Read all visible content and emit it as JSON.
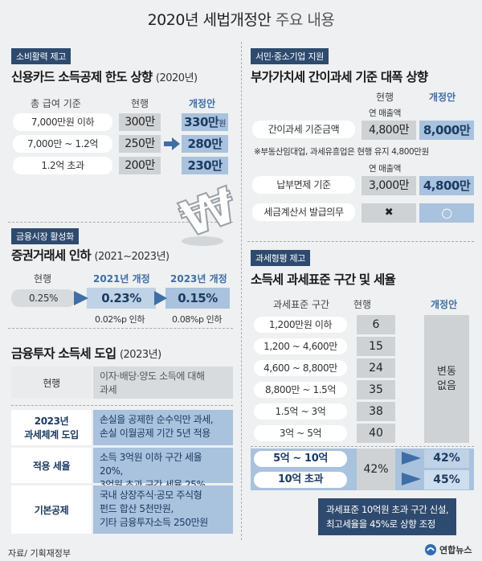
{
  "title_bold": "2020년 세법개정안",
  "title_light": "주요 내용",
  "card": {
    "tag": "소비활력 제고",
    "heading": "신용카드 소득공제 한도 상향",
    "heading_sub": "(2020년)",
    "col_salary": "총 급여 기준",
    "col_current": "현행",
    "col_new": "개정안",
    "rows": [
      {
        "salary": "7,000만원 이하",
        "current": "300만",
        "new": "330만",
        "unit": "원"
      },
      {
        "salary": "7,000만 ~ 1.2억",
        "current": "250만",
        "new": "280만",
        "unit": ""
      },
      {
        "salary": "1.2억 초과",
        "current": "200만",
        "new": "230만",
        "unit": ""
      }
    ]
  },
  "vat": {
    "tag": "서민·중소기업 지원",
    "heading": "부가가치세 간이과세 기준 대폭 상향",
    "col_current": "현행",
    "col_new": "개정안",
    "rev_label_1": "연 매출액",
    "row1_label": "간이과세 기준금액",
    "row1_current": "4,800만",
    "row1_new": "8,000만",
    "note": "※부동산임대업, 과세유흥업은 현행 유지 4,800만원",
    "rev_label_2": "연 매출액",
    "row2_label": "납부면제 기준",
    "row2_current": "3,000만",
    "row2_new": "4,800만",
    "row3_label": "세금계산서 발급의무",
    "row3_current": "✖",
    "row3_new": "○"
  },
  "market": {
    "tag": "금융시장 활성화",
    "heading": "증권거래세 인하",
    "heading_sub": "(2021~2023년)",
    "col_current": "현행",
    "col_2021": "2021년 개정",
    "col_2023": "2023년 개정",
    "current": "0.25%",
    "v2021": "0.23%",
    "v2023": "0.15%",
    "cut_2021": "0.02%p 인하",
    "cut_2023": "0.08%p 인하"
  },
  "fin": {
    "heading": "금융투자 소득세 도입",
    "heading_sub": "(2023년)",
    "current_label": "현행",
    "current_text": [
      "이자·배당·양도 소득에 대해",
      "과세"
    ],
    "rows": [
      {
        "label": [
          "2023년",
          "과세체계 도입"
        ],
        "text": [
          "손실을 공제한 순수익만 과세,",
          "손실 이월공제 기간 5년 적용"
        ]
      },
      {
        "label": [
          "적용 세율"
        ],
        "text": [
          "소득 3억원 이하 구간 세율 20%,",
          "3억원 초과 구간 세율 25%"
        ]
      },
      {
        "label": [
          "기본공제"
        ],
        "text": [
          "국내 상장주식·공모 주식형",
          "펀드 합산 5천만원,",
          "기타 금융투자소득 250만원"
        ]
      }
    ]
  },
  "income": {
    "tag": "과세형평 제고",
    "heading": "소득세 과세표준 구간 및 세율",
    "col_bracket": "과세표준 구간",
    "col_current": "현행",
    "col_new": "개정안",
    "rows": [
      {
        "bracket": "1,200만원 이하",
        "rate": "6"
      },
      {
        "bracket": "1,200 ~ 4,600만",
        "rate": "15"
      },
      {
        "bracket": "4,600 ~ 8,800만",
        "rate": "24"
      },
      {
        "bracket": "8,800만 ~ 1.5억",
        "rate": "35"
      },
      {
        "bracket": "1.5억 ~ 3억",
        "rate": "38"
      },
      {
        "bracket": "3억 ~ 5억",
        "rate": "40"
      }
    ],
    "new_unchanged": [
      "변동",
      "없음"
    ],
    "top_rows": [
      {
        "bracket": "5억 ~ 10억",
        "new": "42%"
      },
      {
        "bracket": "10억 초과",
        "new": "45%"
      }
    ],
    "top_current": "42%",
    "callout": [
      "과세표준 10억원 초과 구간 신설,",
      "최고세율을 45%로 상향 조정"
    ]
  },
  "footer": {
    "source": "자료/ 기획재정부",
    "logo": "연합뉴스"
  },
  "colors": {
    "navy": "#2e4a6e",
    "accent_blue": "#a9c2dd",
    "grey": "#cfd2d4",
    "background": "#eef0f1"
  }
}
